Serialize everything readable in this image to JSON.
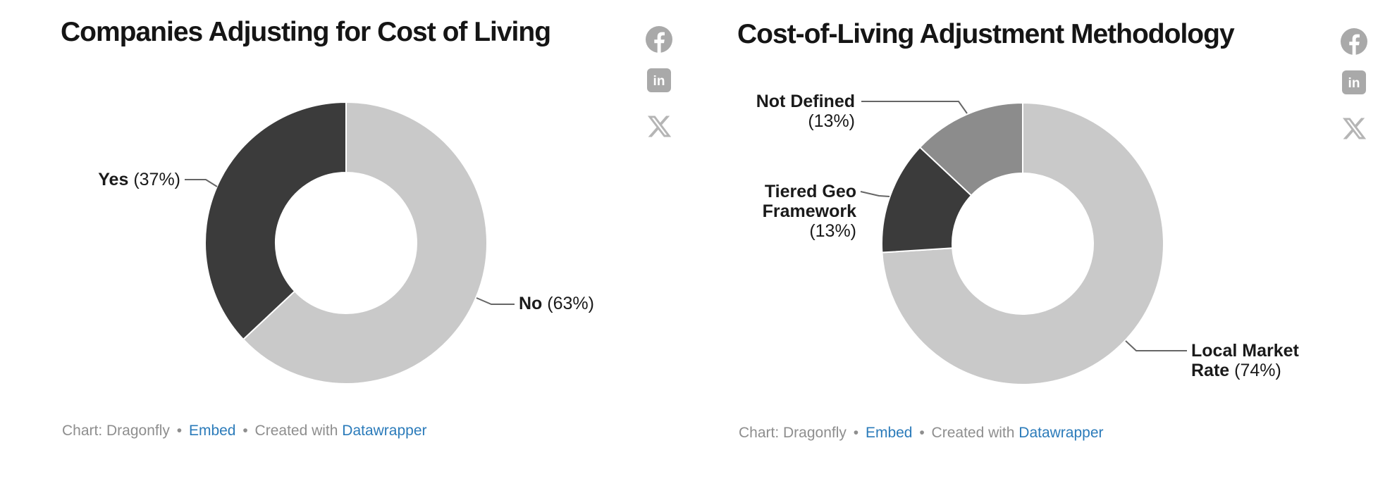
{
  "chart_data": [
    {
      "type": "pie",
      "variant": "donut",
      "title": "Companies Adjusting for Cost of Living",
      "unit": "%",
      "donut_hole_ratio": 0.5,
      "start_angle": 0,
      "direction": "clockwise",
      "slices": [
        {
          "name": "No",
          "value": 63,
          "color": "#c9c9c9"
        },
        {
          "name": "Yes",
          "value": 37,
          "color": "#3b3b3b"
        }
      ]
    },
    {
      "type": "pie",
      "variant": "donut",
      "title": "Cost-of-Living Adjustment Methodology",
      "unit": "%",
      "donut_hole_ratio": 0.5,
      "start_angle": 0,
      "direction": "clockwise",
      "slices": [
        {
          "name": "Local Market Rate",
          "value": 74,
          "color": "#c9c9c9"
        },
        {
          "name": "Tiered Geo Framework",
          "value": 13,
          "color": "#3b3b3b"
        },
        {
          "name": "Not Defined",
          "value": 13,
          "color": "#8c8c8c"
        }
      ]
    }
  ],
  "labels": {
    "yes": {
      "name": "Yes",
      "pct": "(37%)"
    },
    "no": {
      "name": "No",
      "pct": "(63%)"
    },
    "not_defined": {
      "l1": "Not Defined",
      "pct": "(13%)"
    },
    "tiered": {
      "l1": "Tiered Geo",
      "l2": "Framework",
      "pct": "(13%)"
    },
    "local": {
      "l1": "Local Market",
      "l2": "Rate",
      "pct": "(74%)"
    }
  },
  "footer": {
    "source": "Chart: Dragonfly",
    "bullet": "•",
    "embed": "Embed",
    "created": "Created with",
    "datawrapper": "Datawrapper"
  },
  "icons": {
    "facebook": "facebook-share",
    "linkedin": "linkedin-share",
    "x": "x-share"
  },
  "colors": {
    "title": "#151515",
    "label_text": "#1a1a1a",
    "footer_text": "#8e8e8e",
    "link_blue": "#2b7bba",
    "icon_gray": "#a9a9a9",
    "connector": "#666666",
    "slice_light": "#c9c9c9",
    "slice_dark": "#3b3b3b",
    "slice_medium": "#8c8c8c"
  }
}
